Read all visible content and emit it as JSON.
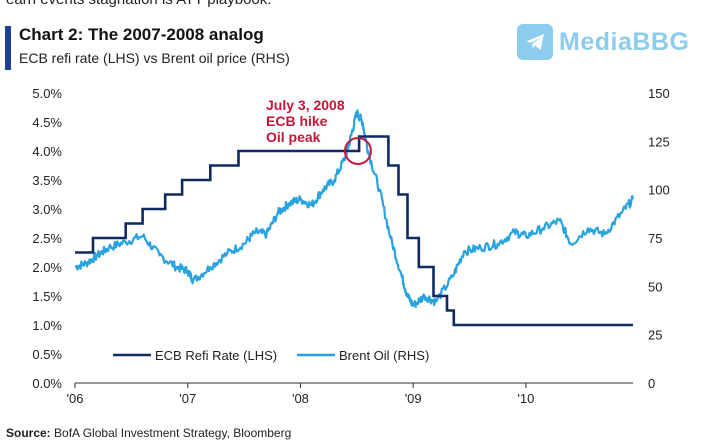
{
  "header": {
    "cropped_text": "earn events stagnation is ATT playbook.",
    "title": "Chart 2: The 2007-2008 analog",
    "subtitle": "ECB refi rate (LHS) vs Brent oil price (RHS)"
  },
  "watermark": {
    "text": "MediaBBG",
    "icon": "paper-plane-icon"
  },
  "colors": {
    "accent": "#1f3f94",
    "ecb": "#0f2a63",
    "brent": "#29a3e0",
    "annotation": "#c4163b"
  },
  "source": {
    "label": "Source:",
    "text": "BofA Global Investment Strategy, Bloomberg"
  },
  "chart_data": {
    "type": "line",
    "title": "Chart 2: The 2007-2008 analog",
    "subtitle": "ECB refi rate (LHS) vs Brent oil price (RHS)",
    "x_axis": {
      "range": [
        2006.0,
        2010.95
      ],
      "ticks": [
        2006,
        2007,
        2008,
        2009,
        2010
      ],
      "tick_labels": [
        "'06",
        "'07",
        "'08",
        "'09",
        "'10"
      ]
    },
    "y_left": {
      "range": [
        0,
        5
      ],
      "ticks": [
        0,
        0.5,
        1,
        1.5,
        2,
        2.5,
        3,
        3.5,
        4,
        4.5,
        5
      ],
      "tick_labels": [
        "0.0%",
        "0.5%",
        "1.0%",
        "1.5%",
        "2.0%",
        "2.5%",
        "3.0%",
        "3.5%",
        "4.0%",
        "4.5%",
        "5.0%"
      ]
    },
    "y_right": {
      "range": [
        0,
        150
      ],
      "ticks": [
        0,
        25,
        50,
        75,
        100,
        125,
        150
      ],
      "tick_labels": [
        "0",
        "25",
        "50",
        "75",
        "100",
        "125",
        "150"
      ]
    },
    "grid": false,
    "legend": {
      "position": "bottom-center",
      "entries": [
        "ECB Refi Rate (LHS)",
        "Brent Oil (RHS)"
      ]
    },
    "series": [
      {
        "name": "ECB Refi Rate (LHS)",
        "axis": "left",
        "style": "step",
        "x": [
          2006.0,
          2006.16,
          2006.45,
          2006.6,
          2006.8,
          2006.95,
          2007.2,
          2007.45,
          2008.52,
          2008.78,
          2008.87,
          2008.95,
          2009.05,
          2009.18,
          2009.3,
          2009.36,
          2010.95
        ],
        "y": [
          2.25,
          2.5,
          2.75,
          3.0,
          3.25,
          3.5,
          3.75,
          4.0,
          4.25,
          3.75,
          3.25,
          2.5,
          2.0,
          1.5,
          1.25,
          1.0,
          1.0
        ]
      },
      {
        "name": "Brent Oil (RHS)",
        "axis": "right",
        "style": "line",
        "x": [
          2006.0,
          2006.1,
          2006.2,
          2006.3,
          2006.45,
          2006.6,
          2006.75,
          2006.9,
          2007.0,
          2007.05,
          2007.2,
          2007.35,
          2007.5,
          2007.6,
          2007.7,
          2007.8,
          2007.9,
          2008.0,
          2008.1,
          2008.2,
          2008.3,
          2008.4,
          2008.45,
          2008.5,
          2008.55,
          2008.6,
          2008.7,
          2008.8,
          2008.9,
          2008.95,
          2009.0,
          2009.1,
          2009.2,
          2009.35,
          2009.45,
          2009.6,
          2009.75,
          2009.9,
          2010.0,
          2010.15,
          2010.3,
          2010.4,
          2010.55,
          2010.7,
          2010.85,
          2010.95
        ],
        "y": [
          60,
          62,
          66,
          70,
          73,
          76,
          66,
          60,
          58,
          53,
          60,
          67,
          72,
          78,
          77,
          88,
          93,
          95,
          92,
          100,
          105,
          117,
          128,
          140,
          135,
          120,
          100,
          75,
          55,
          45,
          40,
          45,
          42,
          55,
          68,
          70,
          72,
          78,
          76,
          80,
          84,
          72,
          80,
          77,
          88,
          95
        ]
      }
    ],
    "annotation": {
      "lines": [
        "July 3, 2008",
        "ECB hike",
        "Oil peak"
      ],
      "x": 2008.51,
      "y_left": 4.0
    }
  }
}
